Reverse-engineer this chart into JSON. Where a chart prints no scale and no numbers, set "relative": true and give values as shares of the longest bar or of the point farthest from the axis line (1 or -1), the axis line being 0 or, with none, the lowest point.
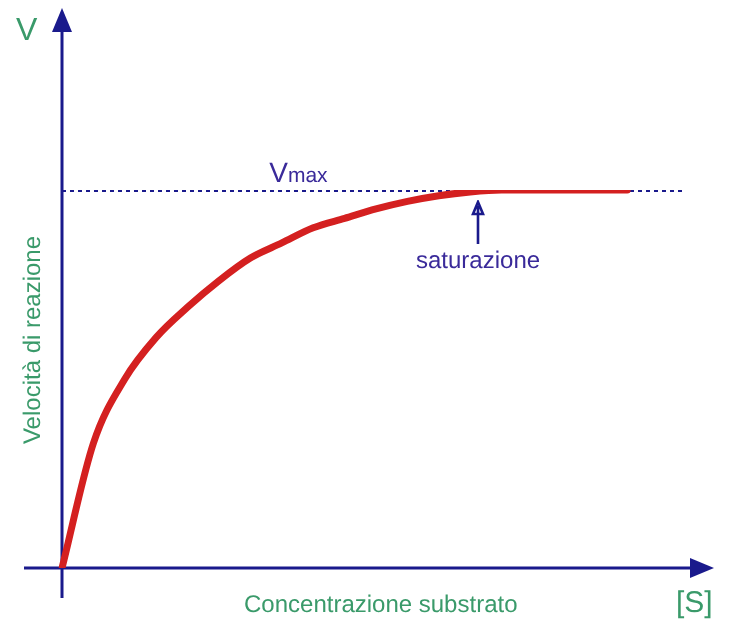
{
  "chart_data": {
    "type": "line",
    "relative": true,
    "xlabel": "Concentrazione substrato",
    "ylabel": "Velocità di reazione",
    "categories": [
      null,
      null,
      null,
      null,
      null,
      null,
      null,
      null,
      null,
      null,
      null,
      null,
      null,
      null,
      null,
      null,
      null,
      null,
      null,
      null,
      null
    ],
    "series": [
      {
        "color": "#d42020",
        "values": [
          0,
          0.33,
          0.5,
          0.61,
          0.69,
          0.76,
          0.82,
          0.86,
          0.9,
          0.925,
          0.95,
          0.97,
          0.985,
          0.995,
          1,
          1,
          1,
          1,
          1,
          null,
          null
        ]
      }
    ],
    "ref_lines": [
      {
        "axis": "y",
        "value": 1,
        "label": "V$_{max}$",
        "color": "#1a1a8c",
        "line_style": "dotted"
      }
    ],
    "annotations": [
      "V",
      "[S]",
      "saturazione"
    ],
    "legend": false,
    "marker": "none",
    "line_style": "solid"
  }
}
